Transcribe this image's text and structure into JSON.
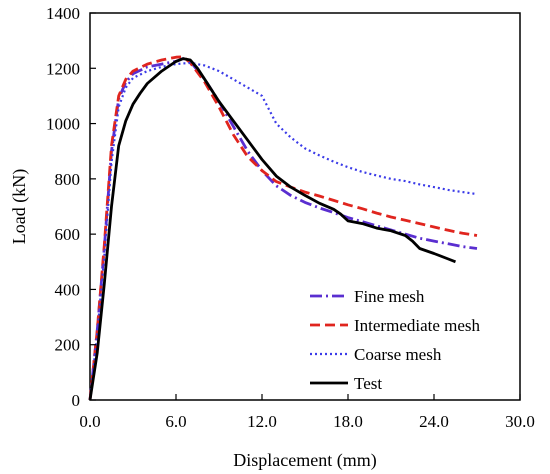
{
  "chart_data": {
    "type": "line",
    "title": "",
    "xlabel": "Displacement (mm)",
    "ylabel": "Load (kN)",
    "xlim": [
      0,
      30
    ],
    "ylim": [
      0,
      1400
    ],
    "x_ticks": [
      0,
      6,
      12,
      18,
      24,
      30
    ],
    "x_tick_labels": [
      "0.0",
      "6.0",
      "12.0",
      "18.0",
      "24.0",
      "30.0"
    ],
    "y_ticks": [
      0,
      200,
      400,
      600,
      800,
      1000,
      1200,
      1400
    ],
    "y_tick_labels": [
      "0",
      "200",
      "400",
      "600",
      "800",
      "1000",
      "1200",
      "1400"
    ],
    "grid": false,
    "legend_position": "bottom-right",
    "series": [
      {
        "name": "Fine mesh",
        "color": "#5a2ed0",
        "dash": "dash-dot",
        "points": [
          [
            0,
            0
          ],
          [
            0.5,
            250
          ],
          [
            1,
            550
          ],
          [
            1.5,
            900
          ],
          [
            2,
            1090
          ],
          [
            2.5,
            1150
          ],
          [
            3,
            1180
          ],
          [
            4,
            1205
          ],
          [
            5,
            1215
          ],
          [
            6,
            1225
          ],
          [
            6.5,
            1235
          ],
          [
            7,
            1225
          ],
          [
            8,
            1160
          ],
          [
            9,
            1080
          ],
          [
            10,
            990
          ],
          [
            11,
            900
          ],
          [
            12,
            830
          ],
          [
            13,
            775
          ],
          [
            14,
            740
          ],
          [
            15,
            715
          ],
          [
            16,
            695
          ],
          [
            17,
            678
          ],
          [
            18,
            660
          ],
          [
            19,
            645
          ],
          [
            20,
            630
          ],
          [
            21,
            615
          ],
          [
            22,
            600
          ],
          [
            23,
            585
          ],
          [
            24,
            575
          ],
          [
            25,
            565
          ],
          [
            26,
            555
          ],
          [
            27,
            548
          ]
        ]
      },
      {
        "name": "Intermediate mesh",
        "color": "#e0251e",
        "dash": "dash",
        "points": [
          [
            0,
            0
          ],
          [
            0.5,
            250
          ],
          [
            1,
            560
          ],
          [
            1.5,
            920
          ],
          [
            2,
            1100
          ],
          [
            2.5,
            1160
          ],
          [
            3,
            1190
          ],
          [
            4,
            1215
          ],
          [
            5,
            1230
          ],
          [
            6,
            1240
          ],
          [
            6.5,
            1242
          ],
          [
            7,
            1220
          ],
          [
            8,
            1150
          ],
          [
            9,
            1060
          ],
          [
            10,
            960
          ],
          [
            11,
            880
          ],
          [
            12,
            830
          ],
          [
            13,
            790
          ],
          [
            14,
            770
          ],
          [
            15,
            752
          ],
          [
            16,
            738
          ],
          [
            17,
            722
          ],
          [
            18,
            706
          ],
          [
            19,
            692
          ],
          [
            20,
            676
          ],
          [
            21,
            662
          ],
          [
            22,
            650
          ],
          [
            23,
            638
          ],
          [
            24,
            626
          ],
          [
            25,
            614
          ],
          [
            26,
            603
          ],
          [
            27,
            595
          ]
        ]
      },
      {
        "name": "Coarse mesh",
        "color": "#3b3be8",
        "dash": "dot",
        "points": [
          [
            0,
            0
          ],
          [
            0.5,
            240
          ],
          [
            1,
            520
          ],
          [
            1.5,
            860
          ],
          [
            2,
            1060
          ],
          [
            2.5,
            1130
          ],
          [
            3,
            1165
          ],
          [
            4,
            1190
          ],
          [
            5,
            1205
          ],
          [
            6,
            1215
          ],
          [
            7,
            1220
          ],
          [
            8,
            1210
          ],
          [
            9,
            1190
          ],
          [
            10,
            1160
          ],
          [
            11,
            1130
          ],
          [
            12,
            1100
          ],
          [
            13,
            1000
          ],
          [
            14,
            950
          ],
          [
            15,
            910
          ],
          [
            16,
            885
          ],
          [
            17,
            862
          ],
          [
            18,
            842
          ],
          [
            19,
            825
          ],
          [
            20,
            812
          ],
          [
            21,
            800
          ],
          [
            22,
            792
          ],
          [
            23,
            780
          ],
          [
            24,
            770
          ],
          [
            25,
            760
          ],
          [
            26,
            752
          ],
          [
            27,
            745
          ]
        ]
      },
      {
        "name": "Test",
        "color": "#000000",
        "dash": "solid",
        "points": [
          [
            0,
            0
          ],
          [
            0.5,
            170
          ],
          [
            1,
            420
          ],
          [
            1.5,
            700
          ],
          [
            2,
            920
          ],
          [
            2.5,
            1010
          ],
          [
            3,
            1070
          ],
          [
            3.5,
            1110
          ],
          [
            4,
            1145
          ],
          [
            5,
            1190
          ],
          [
            6,
            1225
          ],
          [
            6.5,
            1235
          ],
          [
            7,
            1230
          ],
          [
            7.5,
            1200
          ],
          [
            8,
            1160
          ],
          [
            9,
            1080
          ],
          [
            10,
            1010
          ],
          [
            11,
            940
          ],
          [
            12,
            870
          ],
          [
            13,
            810
          ],
          [
            14,
            770
          ],
          [
            15,
            740
          ],
          [
            16,
            712
          ],
          [
            17,
            690
          ],
          [
            17.5,
            672
          ],
          [
            18,
            648
          ],
          [
            19,
            638
          ],
          [
            20,
            622
          ],
          [
            21,
            612
          ],
          [
            22,
            595
          ],
          [
            22.5,
            575
          ],
          [
            23,
            548
          ],
          [
            24,
            530
          ],
          [
            25,
            510
          ],
          [
            25.5,
            500
          ]
        ]
      }
    ]
  }
}
